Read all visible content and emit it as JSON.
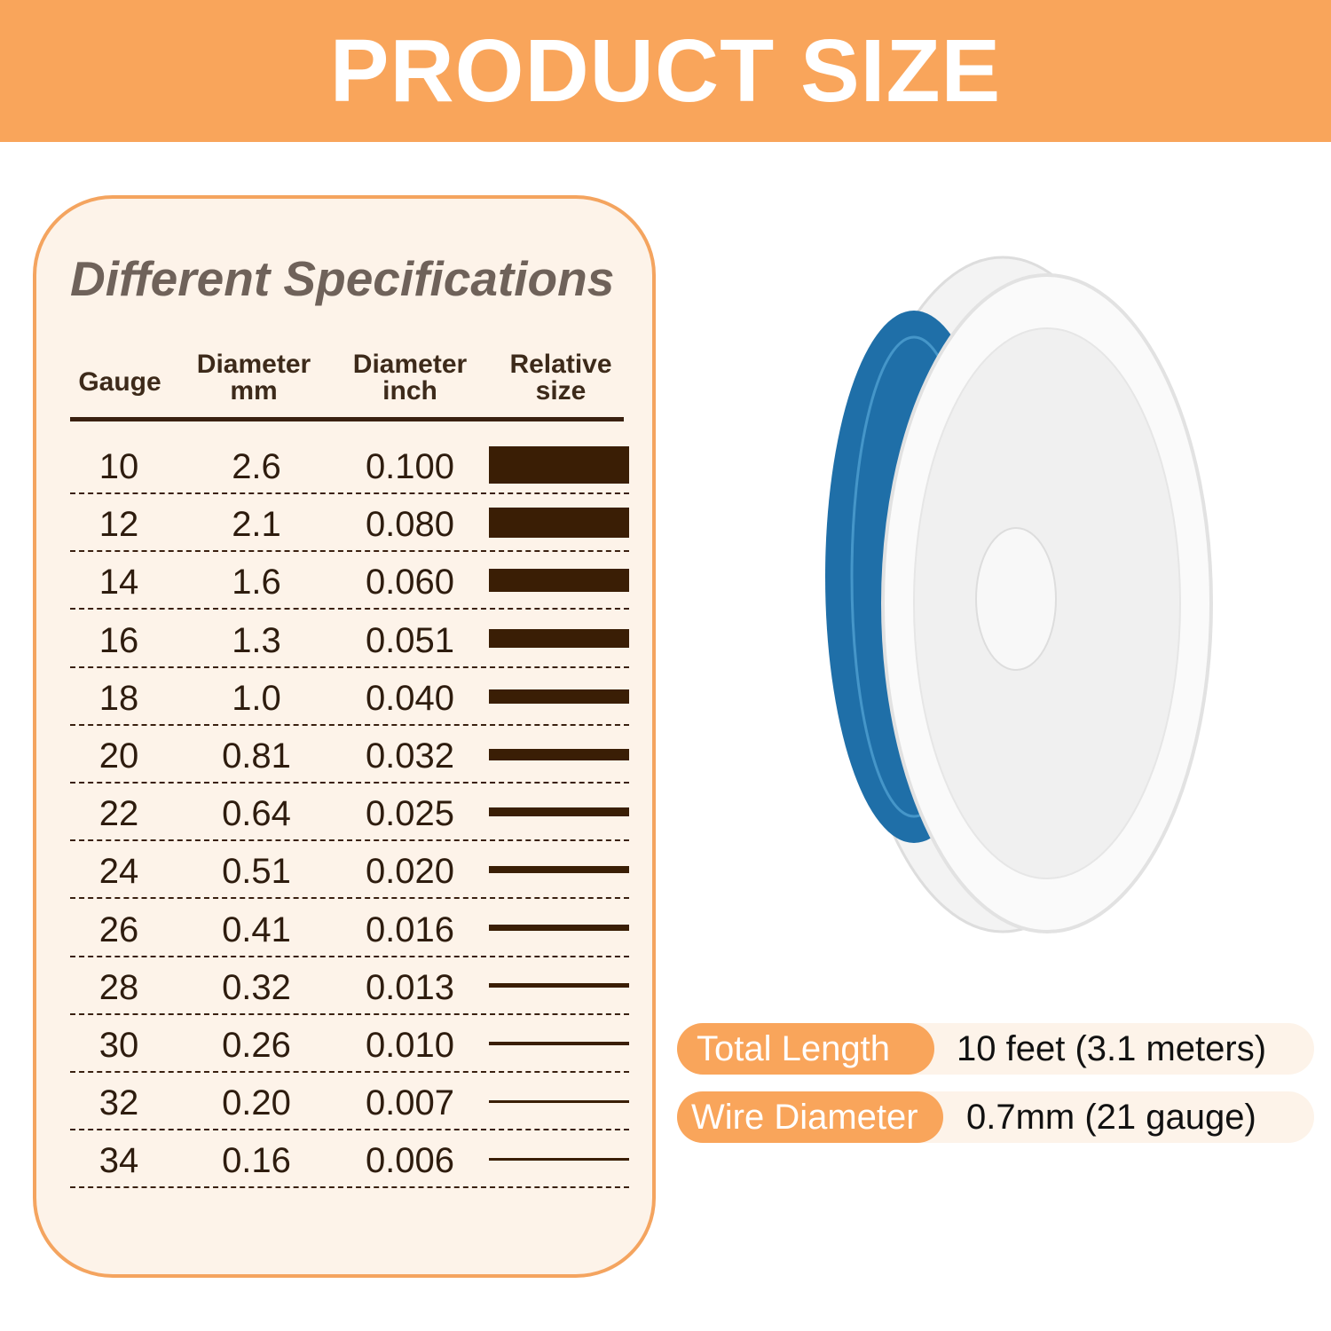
{
  "banner": {
    "title": "PRODUCT SIZE"
  },
  "card": {
    "title": "Different Specifications",
    "headers": {
      "gauge": "Gauge",
      "mm_1": "Diameter",
      "mm_2": "mm",
      "inch_1": "Diameter",
      "inch_2": "inch",
      "rel_1": "Relative",
      "rel_2": "size"
    },
    "rows": [
      {
        "gauge": "10",
        "mm": "2.6",
        "inch": "0.100"
      },
      {
        "gauge": "12",
        "mm": "2.1",
        "inch": "0.080"
      },
      {
        "gauge": "14",
        "mm": "1.6",
        "inch": "0.060"
      },
      {
        "gauge": "16",
        "mm": "1.3",
        "inch": "0.051"
      },
      {
        "gauge": "18",
        "mm": "1.0",
        "inch": "0.040"
      },
      {
        "gauge": "20",
        "mm": "0.81",
        "inch": "0.032"
      },
      {
        "gauge": "22",
        "mm": "0.64",
        "inch": "0.025"
      },
      {
        "gauge": "24",
        "mm": "0.51",
        "inch": "0.020"
      },
      {
        "gauge": "26",
        "mm": "0.41",
        "inch": "0.016"
      },
      {
        "gauge": "28",
        "mm": "0.32",
        "inch": "0.013"
      },
      {
        "gauge": "30",
        "mm": "0.26",
        "inch": "0.010"
      },
      {
        "gauge": "32",
        "mm": "0.20",
        "inch": "0.007"
      },
      {
        "gauge": "34",
        "mm": "0.16",
        "inch": "0.006"
      }
    ]
  },
  "specs": {
    "length_label": "Total Length",
    "length_value": "10 feet (3.1 meters)",
    "diameter_label": "Wire Diameter",
    "diameter_value": "0.7mm (21 gauge)"
  },
  "colors": {
    "accent": "#f9a55b",
    "wire": "#1f6fa8",
    "bar": "#3a1e05"
  }
}
